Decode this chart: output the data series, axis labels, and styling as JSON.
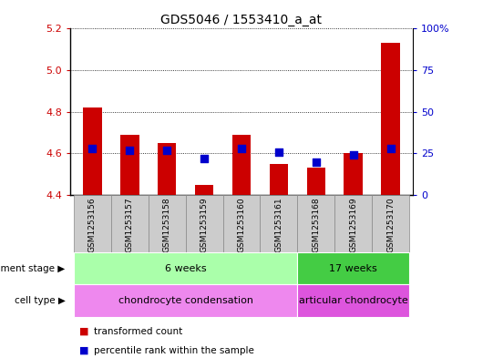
{
  "title": "GDS5046 / 1553410_a_at",
  "samples": [
    "GSM1253156",
    "GSM1253157",
    "GSM1253158",
    "GSM1253159",
    "GSM1253160",
    "GSM1253161",
    "GSM1253168",
    "GSM1253169",
    "GSM1253170"
  ],
  "transformed_count": [
    4.82,
    4.69,
    4.65,
    4.45,
    4.69,
    4.55,
    4.53,
    4.6,
    5.13
  ],
  "percentile_rank": [
    28,
    27,
    27,
    22,
    28,
    26,
    20,
    24,
    28
  ],
  "ylim": [
    4.4,
    5.2
  ],
  "yticks": [
    4.4,
    4.6,
    4.8,
    5.0,
    5.2
  ],
  "right_ylim": [
    0,
    100
  ],
  "right_yticks": [
    0,
    25,
    50,
    75,
    100
  ],
  "right_yticklabels": [
    "0",
    "25",
    "50",
    "75",
    "100%"
  ],
  "bar_color": "#cc0000",
  "dot_color": "#0000cc",
  "bar_width": 0.5,
  "dot_size": 35,
  "development_stage_groups": [
    {
      "label": "6 weeks",
      "start": 0,
      "end": 6,
      "color": "#aaffaa"
    },
    {
      "label": "17 weeks",
      "start": 6,
      "end": 9,
      "color": "#44cc44"
    }
  ],
  "cell_type_groups": [
    {
      "label": "chondrocyte condensation",
      "start": 0,
      "end": 6,
      "color": "#ee88ee"
    },
    {
      "label": "articular chondrocyte",
      "start": 6,
      "end": 9,
      "color": "#dd55dd"
    }
  ],
  "left_label_dev": "development stage",
  "left_label_cell": "cell type",
  "legend_bar_label": "transformed count",
  "legend_dot_label": "percentile rank within the sample",
  "grid_color": "black",
  "tick_label_color_left": "#cc0000",
  "tick_label_color_right": "#0000cc",
  "title_color": "#000000",
  "bar_base": 4.4,
  "sample_box_color": "#cccccc",
  "sample_box_edge_color": "#888888"
}
